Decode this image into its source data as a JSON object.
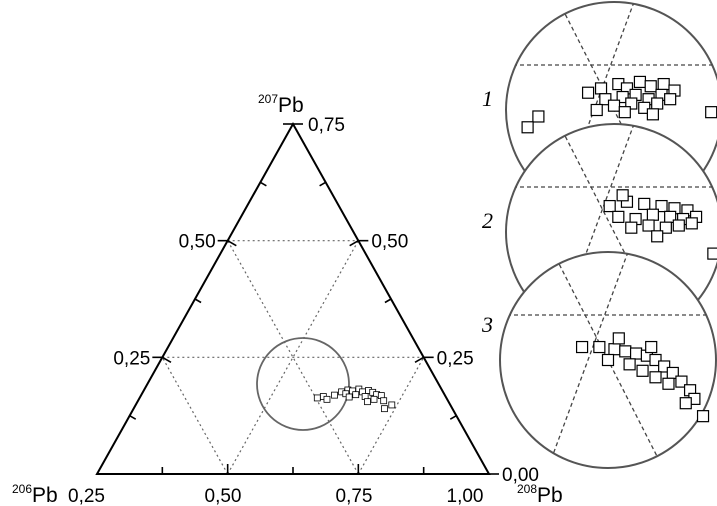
{
  "chart_data": {
    "type": "scatter",
    "diagram": "ternary",
    "vertices": {
      "left": {
        "mass": "206",
        "element": "Pb"
      },
      "top": {
        "mass": "207",
        "element": "Pb"
      },
      "right": {
        "mass": "208",
        "element": "Pb"
      }
    },
    "bottom_ticks": [
      "0,25",
      "0,50",
      "0,75",
      "1,00"
    ],
    "side_ticks": [
      "0,00",
      "0,25",
      "0,50",
      "0,75"
    ],
    "main_points": [
      [
        0.63,
        0.176
      ],
      [
        0.64,
        0.18
      ],
      [
        0.65,
        0.178
      ],
      [
        0.66,
        0.182
      ],
      [
        0.67,
        0.176
      ],
      [
        0.68,
        0.179
      ],
      [
        0.69,
        0.175
      ],
      [
        0.7,
        0.17
      ],
      [
        0.71,
        0.168
      ],
      [
        0.66,
        0.17
      ],
      [
        0.64,
        0.172
      ],
      [
        0.62,
        0.169
      ],
      [
        0.6,
        0.166
      ],
      [
        0.59,
        0.163
      ],
      [
        0.61,
        0.16
      ],
      [
        0.65,
        0.165
      ],
      [
        0.68,
        0.166
      ],
      [
        0.7,
        0.16
      ],
      [
        0.72,
        0.157
      ],
      [
        0.74,
        0.148
      ],
      [
        0.73,
        0.14
      ],
      [
        0.69,
        0.155
      ]
    ],
    "insets": [
      {
        "label": "1",
        "points": [
          [
            0.38,
            0.42
          ],
          [
            0.44,
            0.4
          ],
          [
            0.52,
            0.38
          ],
          [
            0.56,
            0.4
          ],
          [
            0.62,
            0.37
          ],
          [
            0.67,
            0.39
          ],
          [
            0.73,
            0.38
          ],
          [
            0.78,
            0.41
          ],
          [
            0.46,
            0.45
          ],
          [
            0.54,
            0.44
          ],
          [
            0.6,
            0.43
          ],
          [
            0.66,
            0.45
          ],
          [
            0.72,
            0.43
          ],
          [
            0.5,
            0.48
          ],
          [
            0.58,
            0.47
          ],
          [
            0.64,
            0.49
          ],
          [
            0.7,
            0.47
          ],
          [
            0.76,
            0.45
          ],
          [
            0.42,
            0.5
          ],
          [
            0.55,
            0.51
          ],
          [
            0.68,
            0.52
          ],
          [
            0.95,
            0.51
          ],
          [
            0.15,
            0.53
          ],
          [
            0.1,
            0.58
          ]
        ]
      },
      {
        "label": "2",
        "points": [
          [
            0.48,
            0.38
          ],
          [
            0.56,
            0.36
          ],
          [
            0.64,
            0.37
          ],
          [
            0.72,
            0.38
          ],
          [
            0.78,
            0.39
          ],
          [
            0.84,
            0.4
          ],
          [
            0.52,
            0.43
          ],
          [
            0.6,
            0.44
          ],
          [
            0.68,
            0.42
          ],
          [
            0.76,
            0.43
          ],
          [
            0.82,
            0.44
          ],
          [
            0.88,
            0.43
          ],
          [
            0.58,
            0.48
          ],
          [
            0.66,
            0.47
          ],
          [
            0.74,
            0.48
          ],
          [
            0.8,
            0.47
          ],
          [
            0.86,
            0.46
          ],
          [
            0.7,
            0.52
          ],
          [
            0.54,
            0.33
          ],
          [
            0.96,
            0.6
          ]
        ]
      },
      {
        "label": "3",
        "points": [
          [
            0.38,
            0.44
          ],
          [
            0.46,
            0.44
          ],
          [
            0.53,
            0.45
          ],
          [
            0.58,
            0.46
          ],
          [
            0.63,
            0.47
          ],
          [
            0.68,
            0.48
          ],
          [
            0.72,
            0.5
          ],
          [
            0.76,
            0.53
          ],
          [
            0.8,
            0.56
          ],
          [
            0.84,
            0.6
          ],
          [
            0.88,
            0.64
          ],
          [
            0.9,
            0.68
          ],
          [
            0.6,
            0.52
          ],
          [
            0.66,
            0.55
          ],
          [
            0.72,
            0.58
          ],
          [
            0.78,
            0.61
          ],
          [
            0.86,
            0.7
          ],
          [
            0.94,
            0.76
          ],
          [
            0.5,
            0.5
          ],
          [
            0.7,
            0.44
          ],
          [
            0.55,
            0.4
          ]
        ]
      }
    ]
  }
}
